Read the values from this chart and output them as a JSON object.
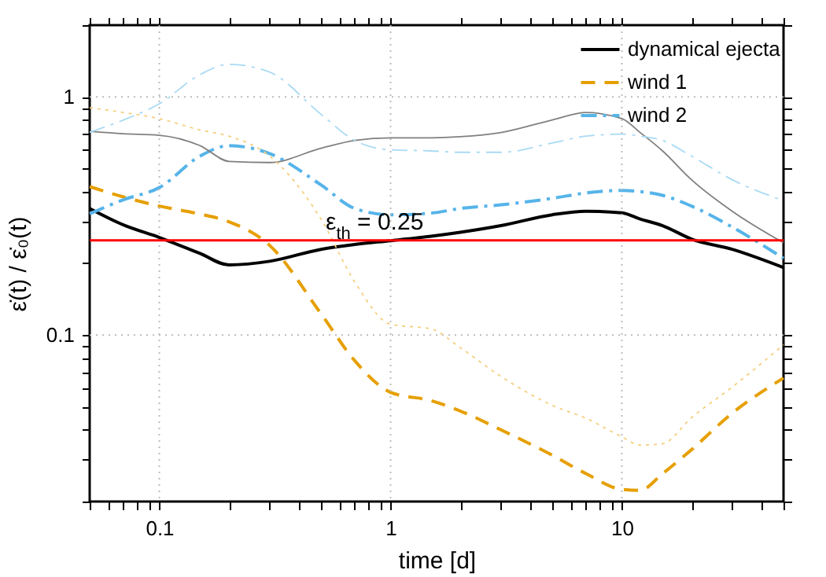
{
  "chart_data": {
    "type": "line",
    "xlabel": "time [d]",
    "ylabel": "ε̇(t) / ε̇₀(t)",
    "log": "xy",
    "grid": true,
    "legend": "top right",
    "xlim": [
      0.05,
      50
    ],
    "ylim": [
      0.02,
      2
    ],
    "xticks": [
      {
        "value": 0.05,
        "label": null
      },
      {
        "value": 0.06,
        "label": null
      },
      {
        "value": 0.07,
        "label": null
      },
      {
        "value": 0.08,
        "label": null
      },
      {
        "value": 0.09,
        "label": null
      },
      0.1,
      {
        "value": 0.2,
        "label": null
      },
      {
        "value": 0.3,
        "label": null
      },
      {
        "value": 0.4,
        "label": null
      },
      {
        "value": 0.5,
        "label": null
      },
      {
        "value": 0.6,
        "label": null
      },
      {
        "value": 0.7,
        "label": null
      },
      {
        "value": 0.8,
        "label": null
      },
      {
        "value": 0.9,
        "label": null
      },
      1,
      {
        "value": 2,
        "label": null
      },
      {
        "value": 3,
        "label": null
      },
      {
        "value": 4,
        "label": null
      },
      {
        "value": 5,
        "label": null
      },
      {
        "value": 6,
        "label": null
      },
      {
        "value": 7,
        "label": null
      },
      {
        "value": 8,
        "label": null
      },
      {
        "value": 9,
        "label": null
      },
      10,
      {
        "value": 20,
        "label": null
      },
      {
        "value": 30,
        "label": null
      },
      {
        "value": 40,
        "label": null
      },
      {
        "value": 50,
        "label": null
      }
    ],
    "yticks": [
      {
        "value": 0.02,
        "label": null
      },
      {
        "value": 0.03,
        "label": null
      },
      {
        "value": 0.04,
        "label": null
      },
      {
        "value": 0.05,
        "label": null
      },
      {
        "value": 0.06,
        "label": null
      },
      {
        "value": 0.07,
        "label": null
      },
      {
        "value": 0.08,
        "label": null
      },
      {
        "value": 0.09,
        "label": null
      },
      0.1,
      {
        "value": 0.2,
        "label": null
      },
      {
        "value": 0.3,
        "label": null
      },
      {
        "value": 0.4,
        "label": null
      },
      {
        "value": 0.5,
        "label": null
      },
      {
        "value": 0.6,
        "label": null
      },
      {
        "value": 0.7,
        "label": null
      },
      {
        "value": 0.8,
        "label": null
      },
      {
        "value": 0.9,
        "label": null
      },
      1,
      {
        "value": 2,
        "label": null
      }
    ],
    "x": [
      0.05,
      0.07,
      0.1,
      0.15,
      0.2,
      0.3,
      0.5,
      0.7,
      1,
      1.5,
      2,
      3,
      5,
      7,
      10,
      12,
      15,
      20,
      30,
      50
    ],
    "series": [
      {
        "name": "dynamical ejecta",
        "color": "#000000",
        "line_style": "solid",
        "values": [
          0.34,
          0.29,
          0.257,
          0.22,
          0.197,
          0.204,
          0.229,
          0.24,
          0.249,
          0.26,
          0.27,
          0.288,
          0.32,
          0.331,
          0.326,
          0.307,
          0.288,
          0.253,
          0.229,
          0.192
        ]
      },
      {
        "name": "wind 1",
        "color": "#e69f00",
        "line_style": "dashed",
        "values": [
          0.42,
          0.38,
          0.348,
          0.322,
          0.299,
          0.238,
          0.123,
          0.078,
          0.0575,
          0.053,
          0.048,
          0.04,
          0.0313,
          0.0262,
          0.0225,
          0.0223,
          0.0262,
          0.033,
          0.047,
          0.066
        ]
      },
      {
        "name": "wind 2",
        "color": "#56b4e9",
        "line_style": "dashdot",
        "values": [
          0.323,
          0.37,
          0.416,
          0.564,
          0.624,
          0.578,
          0.427,
          0.34,
          0.32,
          0.325,
          0.34,
          0.352,
          0.375,
          0.395,
          0.405,
          0.4,
          0.386,
          0.348,
          0.284,
          0.21
        ]
      },
      {
        "color": "#808080",
        "line_style": "solid",
        "values": [
          0.716,
          0.7,
          0.69,
          0.624,
          0.536,
          0.53,
          0.608,
          0.656,
          0.673,
          0.673,
          0.68,
          0.708,
          0.8,
          0.859,
          0.81,
          0.708,
          0.593,
          0.449,
          0.331,
          0.244
        ]
      },
      {
        "color": "#f5cf7f",
        "line_style": "dotted",
        "values": [
          0.9,
          0.86,
          0.81,
          0.726,
          0.684,
          0.564,
          0.307,
          0.167,
          0.111,
          0.106,
          0.0886,
          0.067,
          0.0507,
          0.0447,
          0.0374,
          0.0345,
          0.035,
          0.045,
          0.0605,
          0.091
        ]
      },
      {
        "color": "#a9daf4",
        "line_style": "dashdot",
        "values": [
          0.71,
          0.8,
          0.935,
          1.24,
          1.37,
          1.27,
          0.845,
          0.656,
          0.599,
          0.593,
          0.585,
          0.585,
          0.64,
          0.684,
          0.697,
          0.684,
          0.656,
          0.564,
          0.449,
          0.366
        ]
      }
    ],
    "ref_lines": [
      {
        "axis": "y",
        "value": 0.25,
        "label": "ε$_{th}$ = 0.25",
        "color": "#ff0000"
      }
    ]
  }
}
